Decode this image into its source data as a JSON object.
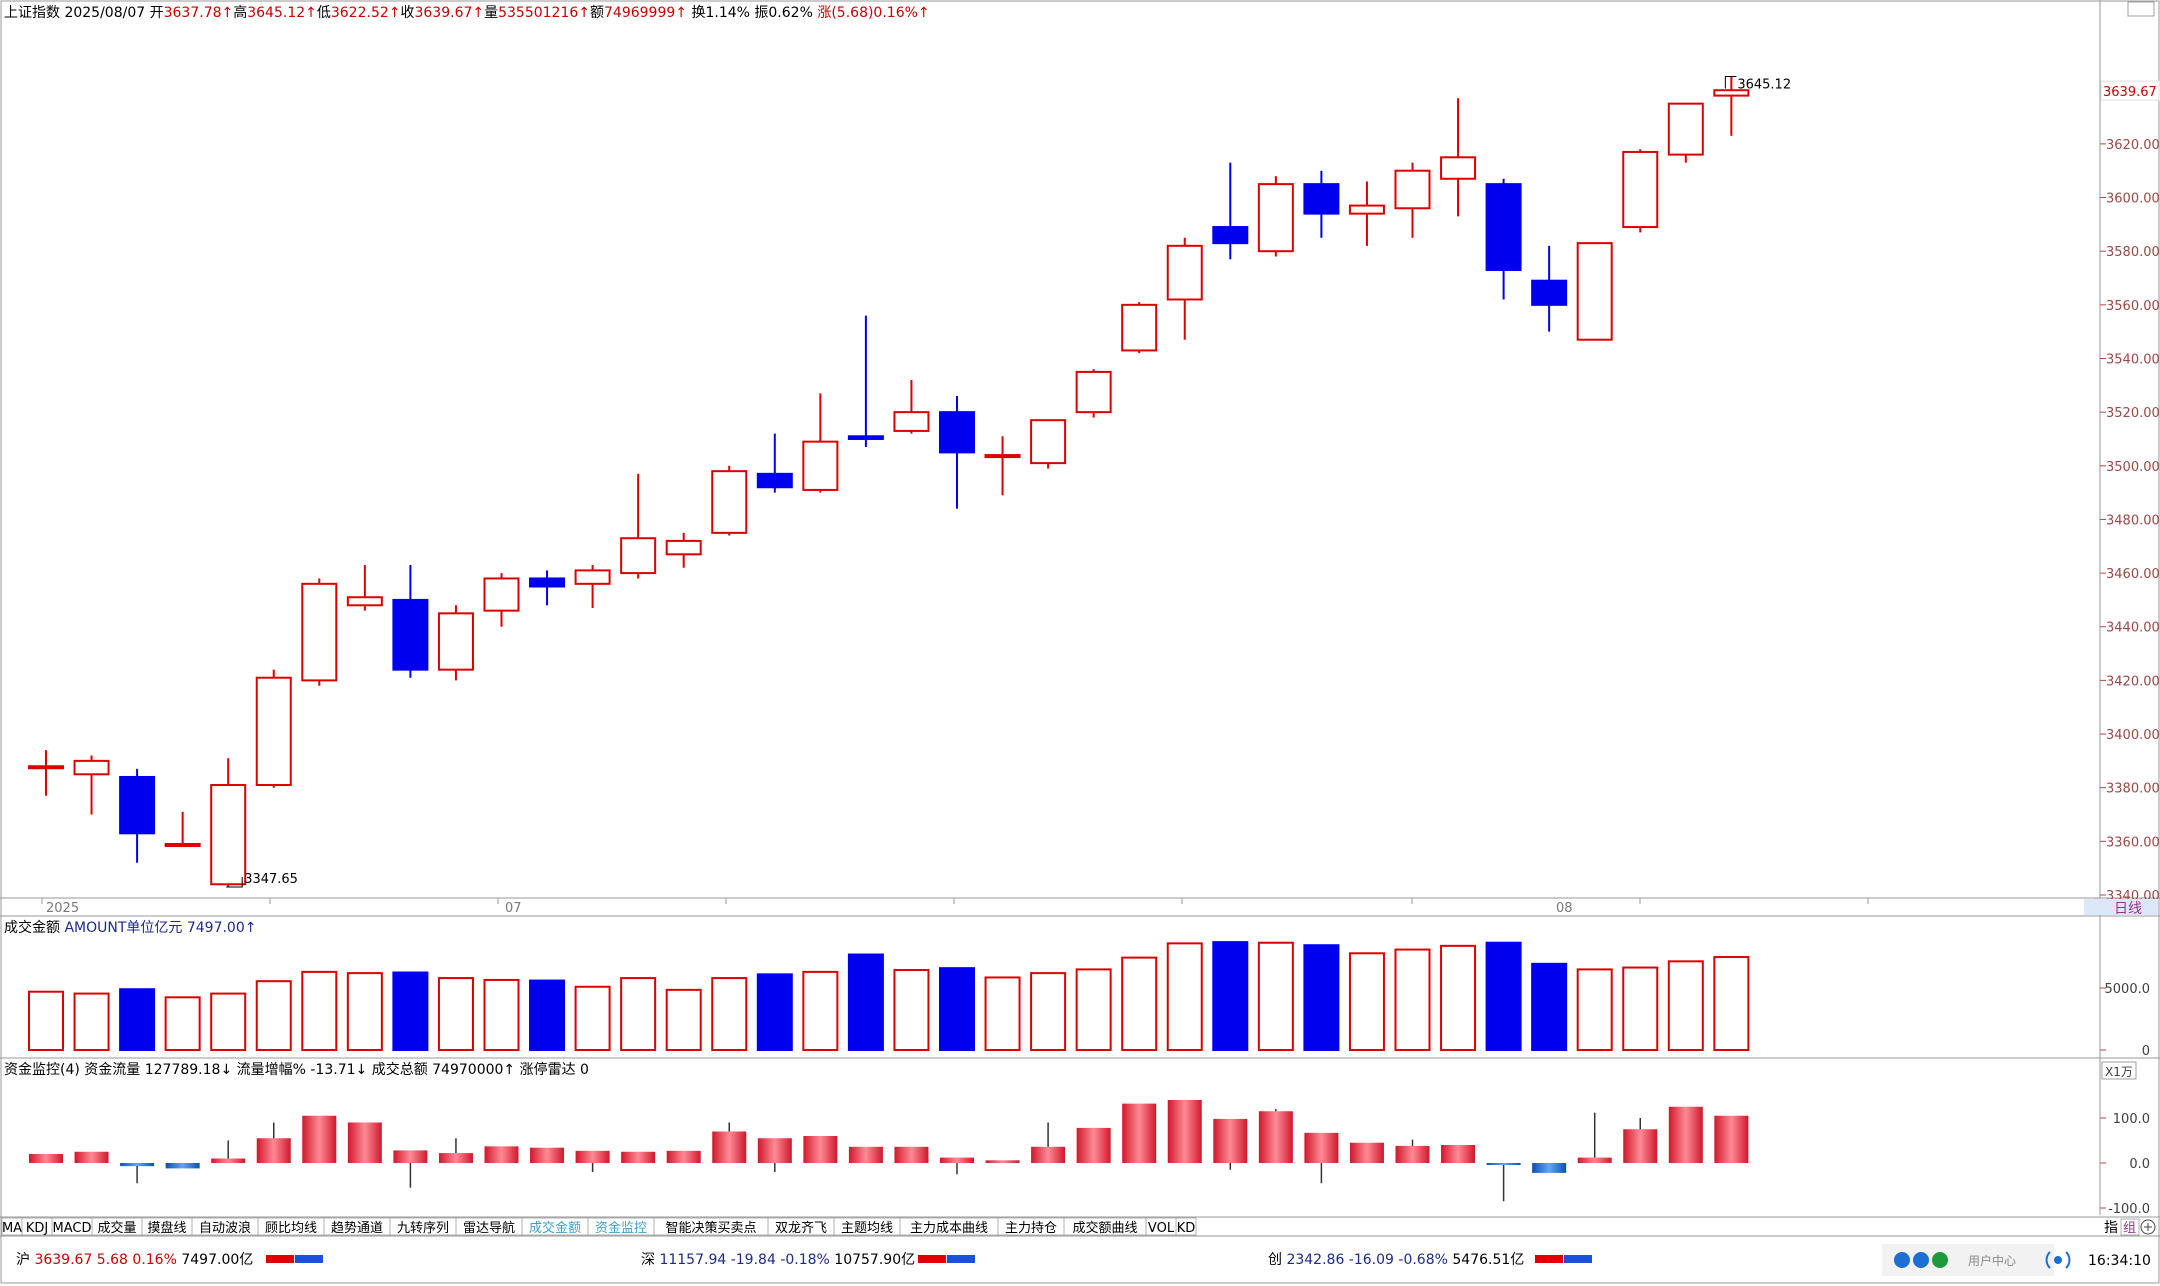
{
  "header": {
    "name": "上证指数",
    "date": "2025/08/07",
    "open_label": "开",
    "open": "3637.78↑",
    "high_label": "高",
    "high": "3645.12↑",
    "low_label": "低",
    "low": "3622.52↑",
    "close_label": "收",
    "close": "3639.67↑",
    "vol_label": "量",
    "vol": "535501216↑",
    "amt_label": "额",
    "amt": "74969999↑",
    "turnover": "换1.14%",
    "amplitude": "振0.62%",
    "change": "涨(5.68)0.16%↑"
  },
  "price_axis": {
    "ticks": [
      "3620.00",
      "3600.00",
      "3580.00",
      "3560.00",
      "3540.00",
      "3520.00",
      "3500.00",
      "3480.00",
      "3460.00",
      "3440.00",
      "3420.00",
      "3400.00",
      "3380.00",
      "3360.00",
      "3340.00"
    ],
    "current_label": "3639.67"
  },
  "annotations": {
    "high": "3645.12",
    "low": "3347.65"
  },
  "x_axis": {
    "labels": [
      "2025",
      "07",
      "08"
    ],
    "period": "日线"
  },
  "amount_panel": {
    "title": "成交金额",
    "subtitle": "AMOUNT单位亿元 7497.00↑",
    "ticks": [
      "5000.0",
      "0"
    ]
  },
  "flow_panel": {
    "title": "资金监控(4)",
    "flow_label": "资金流量 127789.18↓",
    "flow_ratio": "流量增幅% -13.71↓",
    "total_label": "成交总额 74970000↑",
    "limit_label": "涨停雷达 0",
    "ticks": [
      "100.0",
      "0.0",
      "-100.0"
    ],
    "scale_box": "X1万"
  },
  "tabs": [
    "MA",
    "KDJ",
    "MACD",
    "成交量",
    "摸盘线",
    "自动波浪",
    "顾比均线",
    "趋势通道",
    "九转序列",
    "雷达导航",
    "成交金额",
    "资金监控",
    "智能决策买卖点",
    "双龙齐飞",
    "主题均线",
    "主力成本曲线",
    "主力持仓",
    "成交额曲线",
    "VOL",
    "KD"
  ],
  "active_tabs": [
    "成交金额",
    "资金监控"
  ],
  "tabs_right": {
    "a": "指",
    "b": "组"
  },
  "status_bar": {
    "sh": {
      "name": "沪",
      "price": "3639.67",
      "chg": "5.68",
      "pct": "0.16%",
      "amt": "7497.00亿"
    },
    "sz": {
      "name": "深",
      "price": "11157.94",
      "chg": "-19.84",
      "pct": "-0.18%",
      "amt": "10757.90亿"
    },
    "cy": {
      "name": "创",
      "price": "2342.86",
      "chg": "-16.09",
      "pct": "-0.68%",
      "amt": "5476.51亿"
    },
    "user_center": "用户中心",
    "time": "16:34:10"
  },
  "colors": {
    "up": "#dd0000",
    "down": "#0000ee",
    "axis": "#c04040",
    "flow_pos": "#e8303c",
    "flow_neg": "#1e6fd4"
  },
  "chart_data": {
    "type": "candlestick",
    "title": "上证指数",
    "ylim": [
      3340,
      3655
    ],
    "ohlc": [
      [
        3388,
        3394,
        3377,
        3388
      ],
      [
        3385,
        3392,
        3370,
        3390
      ],
      [
        3384,
        3387,
        3352,
        3363
      ],
      [
        3359,
        3371,
        3358,
        3359
      ],
      [
        3344,
        3391,
        3343,
        3381
      ],
      [
        3381,
        3424,
        3380,
        3421
      ],
      [
        3420,
        3458,
        3418,
        3456
      ],
      [
        3448,
        3463,
        3446,
        3451
      ],
      [
        3450,
        3463,
        3421,
        3424
      ],
      [
        3424,
        3448,
        3420,
        3445
      ],
      [
        3446,
        3460,
        3440,
        3458
      ],
      [
        3458,
        3461,
        3448,
        3455
      ],
      [
        3456,
        3463,
        3447,
        3461
      ],
      [
        3460,
        3497,
        3458,
        3473
      ],
      [
        3467,
        3475,
        3462,
        3472
      ],
      [
        3475,
        3500,
        3474,
        3498
      ],
      [
        3497,
        3512,
        3490,
        3492
      ],
      [
        3491,
        3527,
        3490,
        3509
      ],
      [
        3511,
        3556,
        3507,
        3510
      ],
      [
        3513,
        3532,
        3512,
        3520
      ],
      [
        3520,
        3526,
        3484,
        3505
      ],
      [
        3504,
        3511,
        3489,
        3504
      ],
      [
        3501,
        3517,
        3499,
        3517
      ],
      [
        3520,
        3536,
        3518,
        3535
      ],
      [
        3543,
        3561,
        3542,
        3560
      ],
      [
        3562,
        3585,
        3547,
        3582
      ],
      [
        3589,
        3613,
        3577,
        3583
      ],
      [
        3580,
        3608,
        3578,
        3605
      ],
      [
        3605,
        3610,
        3585,
        3594
      ],
      [
        3594,
        3606,
        3582,
        3597
      ],
      [
        3596,
        3613,
        3585,
        3610
      ],
      [
        3607,
        3637,
        3593,
        3615
      ],
      [
        3605,
        3607,
        3562,
        3573
      ],
      [
        3569,
        3582,
        3550,
        3560
      ],
      [
        3547,
        3583,
        3547,
        3583
      ],
      [
        3589,
        3618,
        3587,
        3617
      ],
      [
        3616,
        3635,
        3613,
        3635
      ],
      [
        3638,
        3645,
        3623,
        3640
      ]
    ],
    "amount": [
      4700,
      4550,
      4900,
      4250,
      4550,
      5550,
      6300,
      6200,
      6250,
      5800,
      5650,
      5600,
      5100,
      5800,
      4850,
      5800,
      6100,
      6300,
      7700,
      6450,
      6600,
      5850,
      6200,
      6500,
      7450,
      8600,
      8700,
      8650,
      8450,
      7800,
      8100,
      8400,
      8650,
      6950,
      6500,
      6650,
      7150,
      7497
    ],
    "flow": [
      20,
      25,
      -7,
      -12,
      10,
      55,
      105,
      90,
      28,
      22,
      37,
      34,
      27,
      25,
      27,
      70,
      55,
      60,
      36,
      36,
      12,
      6,
      36,
      78,
      132,
      140,
      98,
      115,
      67,
      45,
      38,
      40,
      -2,
      -22,
      12,
      75,
      125,
      105
    ],
    "flow_wick": [
      2,
      0,
      -45,
      0,
      50,
      90,
      0,
      0,
      -55,
      55,
      0,
      0,
      -20,
      0,
      0,
      90,
      -20,
      0,
      0,
      0,
      -25,
      0,
      90,
      0,
      0,
      0,
      -15,
      120,
      -45,
      0,
      52,
      0,
      -85,
      0,
      112,
      100,
      0,
      0
    ]
  }
}
